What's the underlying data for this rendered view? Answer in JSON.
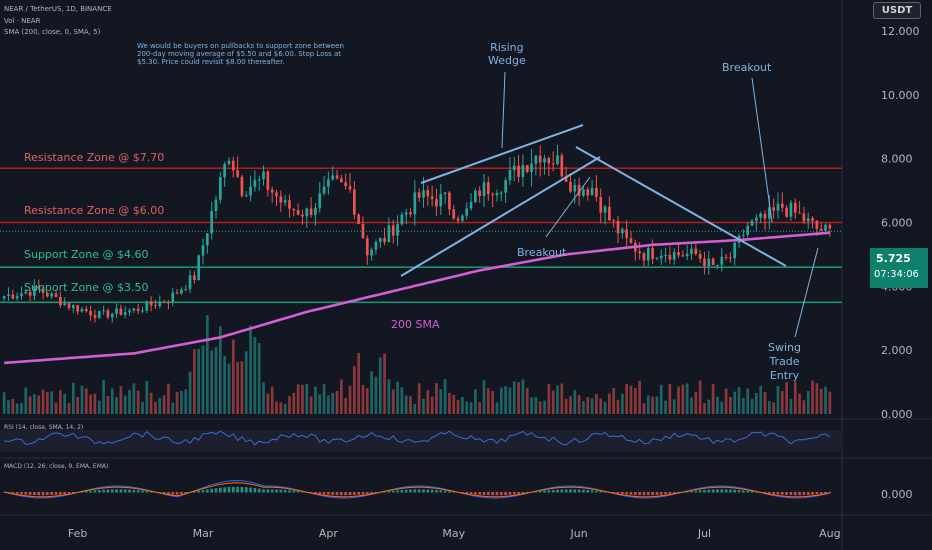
{
  "header": {
    "symbol_line": "NEAR / TetherUS, 1D, BINANCE",
    "vol_line": "Vol · NEAR",
    "sma_line": "SMA (200, close, 0, SMA, 5)",
    "rsi_line": "RSI (14, close, SMA, 14, 2)",
    "macd_line": "MACD (12, 26, close, 9, EMA, EMA)"
  },
  "currency_button": "USDT",
  "price_badge": {
    "price": "5.725",
    "countdown": "07:34:06"
  },
  "colors": {
    "background": "#131722",
    "up": "#26a69a",
    "down": "#ef5350",
    "sma": "#d35fd3",
    "trendline": "#7fb3e0",
    "resistance": "#b71c1c",
    "support": "#1e8f6f",
    "annotation": "#7fb3e0",
    "support_label": "#2dbd96",
    "resistance_label": "#e35f5f"
  },
  "annotations": {
    "note": "We would be buyers on pullbacks to support zone between\n200-day moving average of $5.50 and $6.00. Stop Loss at\n$5.30. Price could revisit $8.00 thereafter.",
    "rising_wedge": "Rising\nWedge",
    "breakout_top": "Breakout",
    "breakout_mid": "Breakout",
    "sma_label": "200 SMA",
    "swing_trade": "Swing\nTrade\nEntry",
    "resistance_770": "Resistance Zone @ $7.70",
    "resistance_600": "Resistance Zone @ $6.00",
    "support_460": "Support Zone @ $4.60",
    "support_350": "Support Zone @ $3.50"
  },
  "chart_data": {
    "type": "candlestick",
    "symbol": "NEAR / TetherUS",
    "timeframe": "1D",
    "price_axis": {
      "ticks": [
        "12.000",
        "10.000",
        "8.000",
        "6.000",
        "4.000",
        "2.000",
        "0.000"
      ],
      "range": [
        0,
        12.5
      ]
    },
    "x_axis": {
      "ticks": [
        "Feb",
        "Mar",
        "Apr",
        "May",
        "Jun",
        "Jul",
        "Aug"
      ]
    },
    "macd_axis": {
      "ticks": [
        "0.000"
      ]
    },
    "horizontal_levels": [
      {
        "label": "Resistance Zone @ $7.70",
        "value": 7.7
      },
      {
        "label": "Resistance Zone @ $6.00",
        "value": 6.0
      },
      {
        "label": "Support Zone @ $4.60",
        "value": 4.6
      },
      {
        "label": "Support Zone @ $3.50",
        "value": 3.5
      }
    ],
    "close_path": [
      [
        0,
        3.7
      ],
      [
        8,
        3.9
      ],
      [
        15,
        3.4
      ],
      [
        22,
        3.1
      ],
      [
        30,
        3.25
      ],
      [
        38,
        3.6
      ],
      [
        44,
        4.3
      ],
      [
        48,
        6.3
      ],
      [
        52,
        8.2
      ],
      [
        55,
        7.1
      ],
      [
        60,
        7.3
      ],
      [
        65,
        6.5
      ],
      [
        70,
        6.3
      ],
      [
        76,
        7.2
      ],
      [
        80,
        7.0
      ],
      [
        84,
        5.1
      ],
      [
        88,
        5.5
      ],
      [
        92,
        6.2
      ],
      [
        96,
        6.8
      ],
      [
        102,
        6.7
      ],
      [
        106,
        6.1
      ],
      [
        110,
        7.0
      ],
      [
        116,
        7.3
      ],
      [
        120,
        7.8
      ],
      [
        124,
        8.2
      ],
      [
        128,
        7.9
      ],
      [
        132,
        7.1
      ],
      [
        136,
        7.1
      ],
      [
        140,
        6.1
      ],
      [
        144,
        5.4
      ],
      [
        148,
        5.0
      ],
      [
        152,
        5.1
      ],
      [
        156,
        5.0
      ],
      [
        160,
        5.0
      ],
      [
        164,
        4.6
      ],
      [
        168,
        4.9
      ],
      [
        172,
        5.9
      ],
      [
        176,
        6.1
      ],
      [
        180,
        6.5
      ],
      [
        184,
        6.2
      ],
      [
        188,
        5.8
      ],
      [
        191,
        5.7
      ]
    ],
    "sma_200": [
      [
        0,
        1.6
      ],
      [
        30,
        1.9
      ],
      [
        50,
        2.4
      ],
      [
        70,
        3.2
      ],
      [
        90,
        3.85
      ],
      [
        110,
        4.5
      ],
      [
        130,
        5.0
      ],
      [
        150,
        5.3
      ],
      [
        170,
        5.45
      ],
      [
        191,
        5.68
      ]
    ],
    "last_price": 5.725
  }
}
